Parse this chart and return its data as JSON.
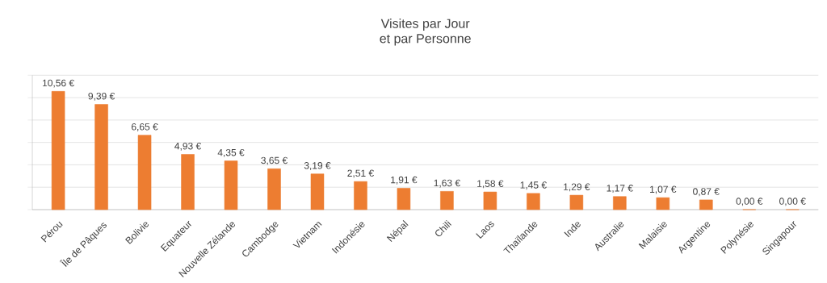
{
  "chart_data": {
    "type": "bar",
    "title": "Visites par Jour",
    "subtitle": "et par Personne",
    "categories": [
      "Pérou",
      "Île de Pâques",
      "Bolivie",
      "Equateur",
      "Nouvelle Zélande",
      "Cambodge",
      "Vietnam",
      "Indonésie",
      "Népal",
      "Chili",
      "Laos",
      "Thaïlande",
      "Inde",
      "Australie",
      "Malaisie",
      "Argentine",
      "Polynésie",
      "Singapour"
    ],
    "values": [
      10.56,
      9.39,
      6.65,
      4.93,
      4.35,
      3.65,
      3.19,
      2.51,
      1.91,
      1.63,
      1.58,
      1.45,
      1.29,
      1.17,
      1.07,
      0.87,
      0.0,
      0.0
    ],
    "value_labels": [
      "10,56 €",
      "9,39 €",
      "6,65 €",
      "4,93 €",
      "4,35 €",
      "3,65 €",
      "3,19 €",
      "2,51 €",
      "1,91 €",
      "1,63 €",
      "1,58 €",
      "1,45 €",
      "1,29 €",
      "1,17 €",
      "1,07 €",
      "0,87 €",
      "0,00 €",
      "0,00 €"
    ],
    "color": "#ed7d31",
    "ylim": [
      0,
      12
    ],
    "yticks": [
      {
        "value": 0,
        "label": null
      },
      {
        "value": 2,
        "label": null
      },
      {
        "value": 4,
        "label": null
      },
      {
        "value": 6,
        "label": null
      },
      {
        "value": 8,
        "label": null
      },
      {
        "value": 10,
        "label": null
      },
      {
        "value": 12,
        "label": null
      }
    ],
    "grid": "y"
  }
}
